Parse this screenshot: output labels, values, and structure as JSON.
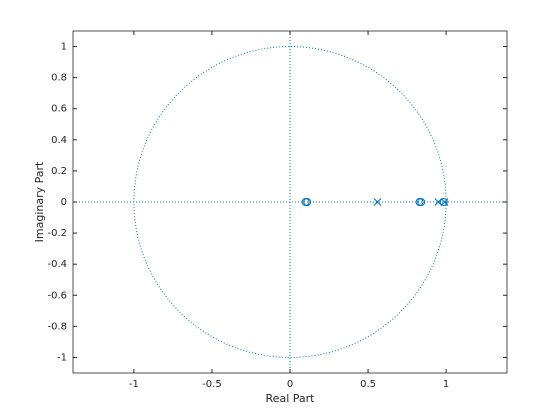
{
  "chart_data": {
    "type": "scatter",
    "xlabel": "Real Part",
    "ylabel": "Imaginary Part",
    "series": [
      {
        "marker": "o",
        "color": "#0072bd",
        "x": [
          0.1,
          0.11,
          0.83,
          0.84,
          0.985
        ],
        "values": [
          0,
          0,
          0,
          0,
          0
        ]
      },
      {
        "marker": "x",
        "color": "#0072bd",
        "x": [
          0.56,
          0.95,
          0.99
        ],
        "values": [
          0,
          0,
          0
        ]
      }
    ],
    "xlim": [
      -1.39,
      1.39
    ],
    "ylim": [
      -1.1,
      1.1
    ],
    "xticks": [
      -1,
      -0.5,
      0,
      0.5,
      1
    ],
    "yticks": [
      -1,
      -0.8,
      -0.6,
      -0.4,
      -0.2,
      0,
      0.2,
      0.4,
      0.6,
      0.8,
      1
    ],
    "unit_circle": true,
    "grid": false
  }
}
